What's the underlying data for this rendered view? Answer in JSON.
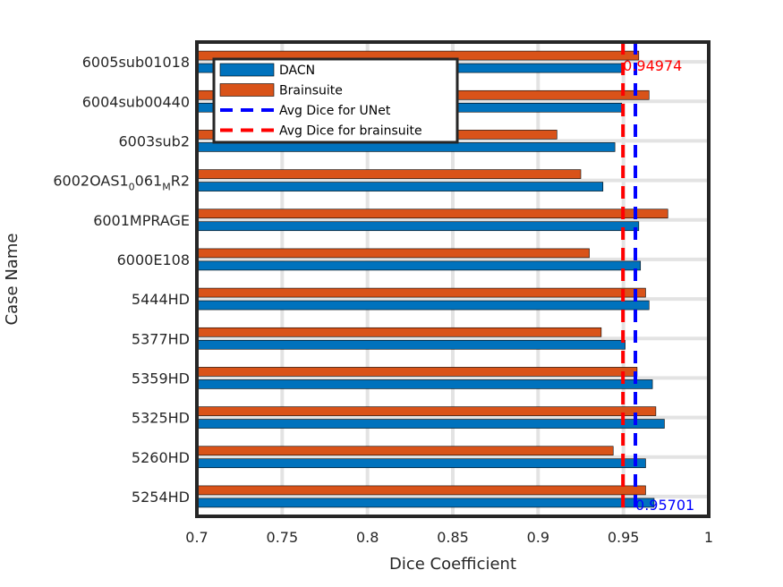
{
  "chart_data": {
    "type": "bar",
    "orientation": "horizontal",
    "xlabel": "Dice Coefficient",
    "ylabel": "Case Name",
    "xlim": [
      0.7,
      1
    ],
    "xticks": [
      0.7,
      0.75,
      0.8,
      0.85,
      0.9,
      0.95,
      1
    ],
    "xtick_labels": [
      "0.7",
      "0.75",
      "0.8",
      "0.85",
      "0.9",
      "0.95",
      "1"
    ],
    "grid": true,
    "legend_position": "top-left",
    "categories": [
      {
        "label": "6005sub01018"
      },
      {
        "label": "6004sub00440"
      },
      {
        "label": "6003sub2"
      },
      {
        "label": "6002OAS1",
        "sub1": "0",
        "mid": "061",
        "sub2": "M",
        "tail": "R2"
      },
      {
        "label": "6001MPRAGE"
      },
      {
        "label": "6000E108"
      },
      {
        "label": "5444HD"
      },
      {
        "label": "5377HD"
      },
      {
        "label": "5359HD"
      },
      {
        "label": "5325HD"
      },
      {
        "label": "5260HD"
      },
      {
        "label": "5254HD"
      }
    ],
    "series": [
      {
        "name": "DACN",
        "color": "#0072BD",
        "values": [
          0.949,
          0.949,
          0.945,
          0.938,
          0.959,
          0.96,
          0.965,
          0.951,
          0.967,
          0.974,
          0.963,
          0.968
        ]
      },
      {
        "name": "Brainsuite",
        "color": "#D95319",
        "values": [
          0.959,
          0.965,
          0.911,
          0.925,
          0.976,
          0.93,
          0.963,
          0.937,
          0.958,
          0.969,
          0.944,
          0.963
        ]
      }
    ],
    "reference_lines": [
      {
        "name": "Avg Dice for UNet",
        "value": 0.95701,
        "color": "#0000FF",
        "label": "0.95701"
      },
      {
        "name": "Avg Dice for brainsuite",
        "value": 0.94974,
        "color": "#FF0000",
        "label": "0.94974"
      }
    ],
    "legend": [
      "DACN",
      "Brainsuite",
      "Avg Dice for UNet",
      "Avg Dice for brainsuite"
    ]
  }
}
